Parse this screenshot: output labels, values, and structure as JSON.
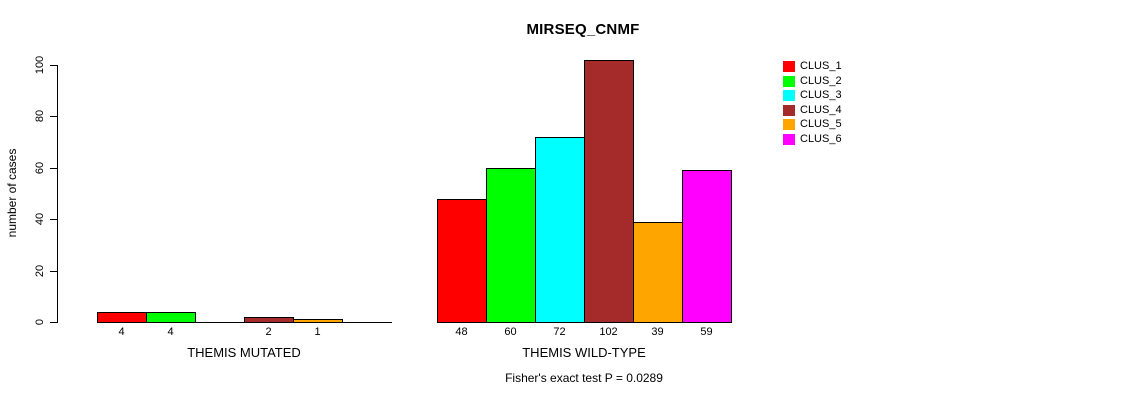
{
  "chart_data": {
    "type": "bar",
    "title": "MIRSEQ_CNMF",
    "xlabel": "",
    "ylabel": "number of cases",
    "ylim": [
      0,
      100
    ],
    "yticks": [
      0,
      20,
      40,
      60,
      80,
      100
    ],
    "grid": false,
    "legend_position": "right",
    "series_names": [
      "CLUS_1",
      "CLUS_2",
      "CLUS_3",
      "CLUS_4",
      "CLUS_5",
      "CLUS_6"
    ],
    "series_colors": [
      "#ff0000",
      "#00ff00",
      "#00ffff",
      "#a52a2a",
      "#ffa500",
      "#ff00ff"
    ],
    "groups": [
      {
        "label": "THEMIS MUTATED",
        "values": [
          4,
          4,
          0,
          2,
          1,
          0
        ],
        "bar_labels": [
          "4",
          "4",
          "",
          "2",
          "1",
          ""
        ]
      },
      {
        "label": "THEMIS WILD-TYPE",
        "values": [
          48,
          60,
          72,
          102,
          39,
          59
        ],
        "bar_labels": [
          "48",
          "60",
          "72",
          "102",
          "39",
          "59"
        ]
      }
    ],
    "annotation": "Fisher's exact test P = 0.0289"
  },
  "legend": {
    "entries": [
      {
        "label": "CLUS_1",
        "color": "#ff0000"
      },
      {
        "label": "CLUS_2",
        "color": "#00ff00"
      },
      {
        "label": "CLUS_3",
        "color": "#00ffff"
      },
      {
        "label": "CLUS_4",
        "color": "#a52a2a"
      },
      {
        "label": "CLUS_5",
        "color": "#ffa500"
      },
      {
        "label": "CLUS_6",
        "color": "#ff00ff"
      }
    ]
  }
}
